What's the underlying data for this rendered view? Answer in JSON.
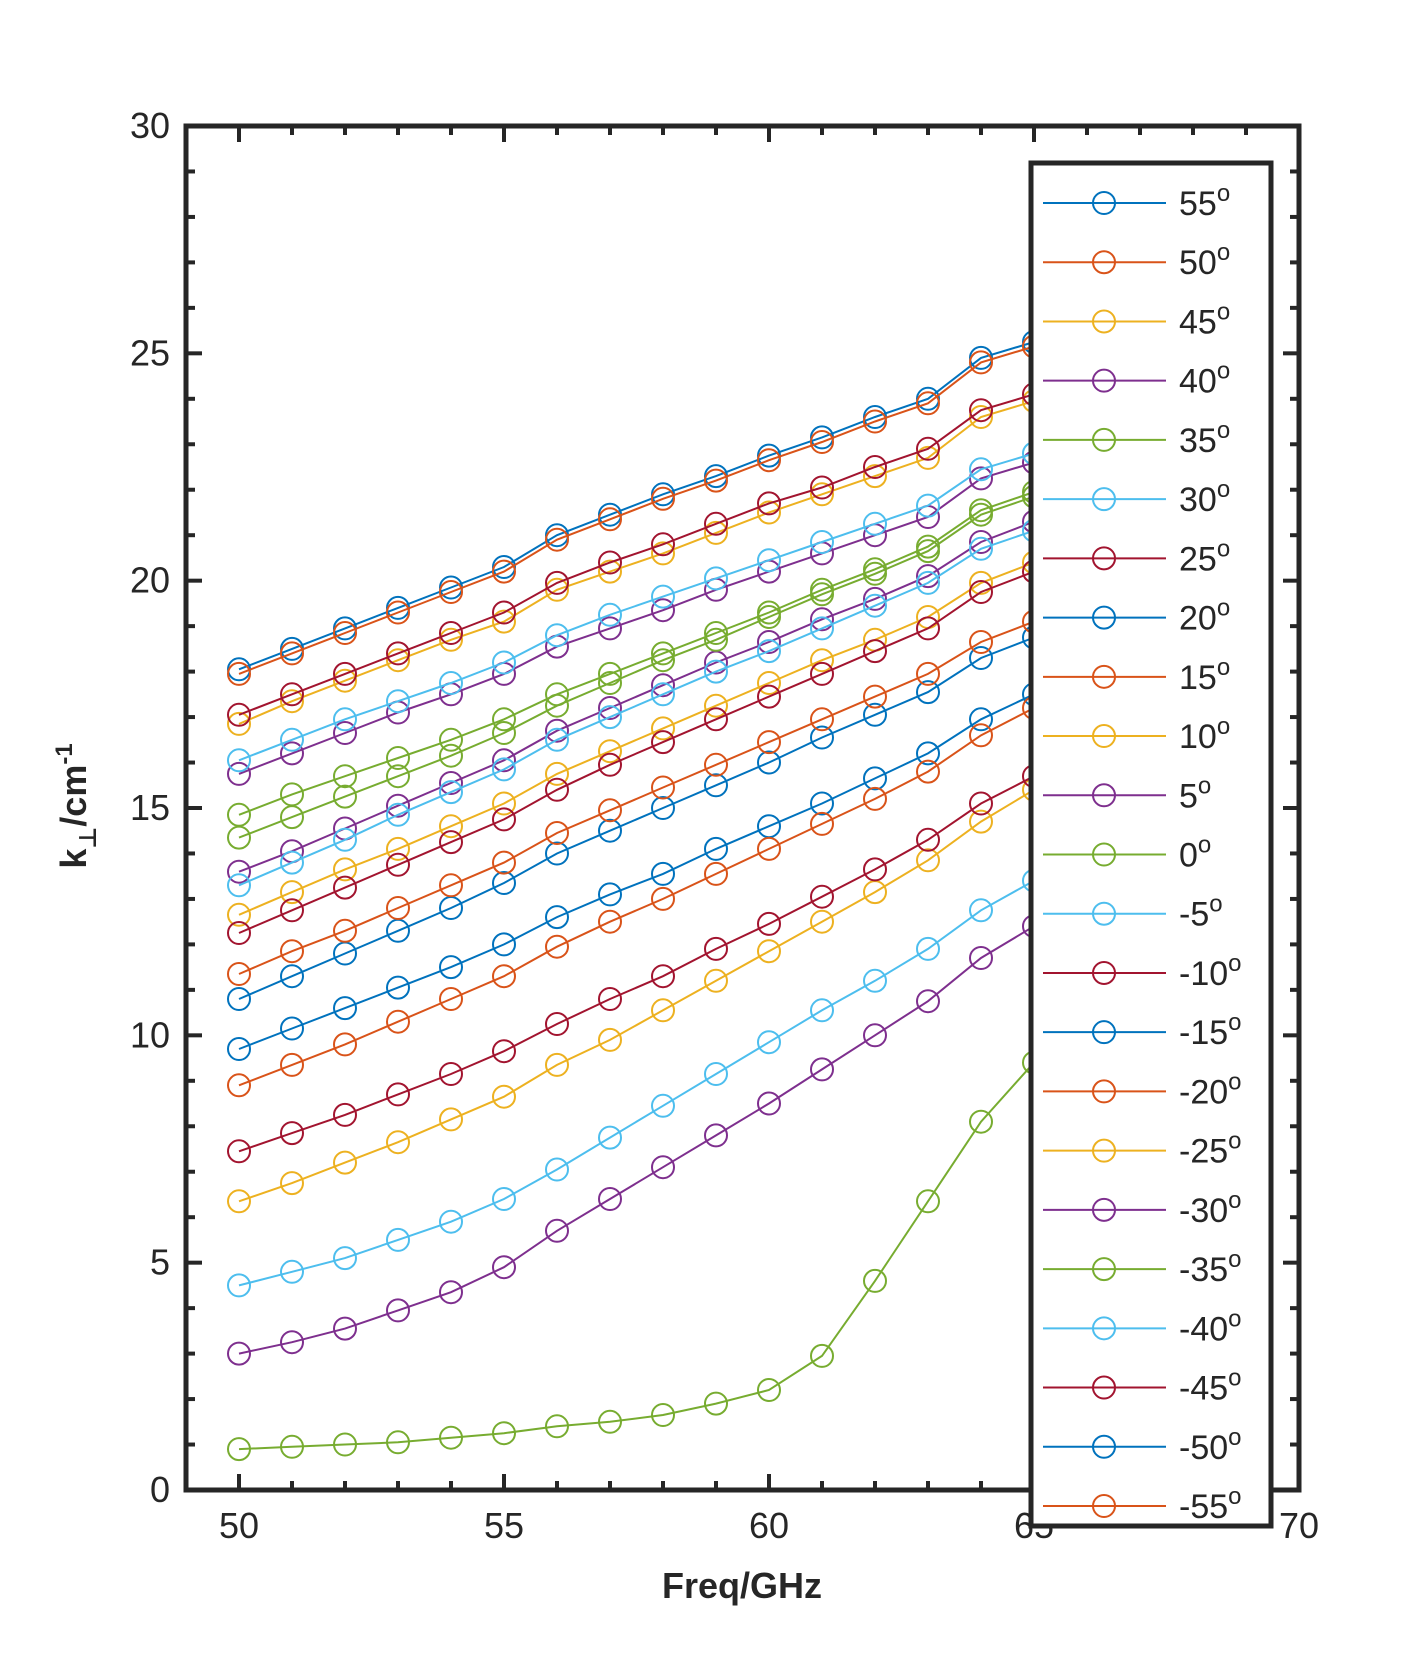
{
  "chart_data": {
    "type": "line",
    "xlabel": "Freq/GHz",
    "ylabel": "k",
    "ylabel_sub": "⊥",
    "ylabel_mid": "/cm",
    "ylabel_sup": "-1",
    "xlim": [
      49,
      70
    ],
    "ylim": [
      0,
      30
    ],
    "xticks": [
      50,
      55,
      60,
      65,
      70
    ],
    "yticks": [
      0,
      5,
      10,
      15,
      20,
      25,
      30
    ],
    "legend_position": "right",
    "legend_unit_sup": "o",
    "x": [
      50,
      51,
      52,
      53,
      54,
      55,
      56,
      57,
      58,
      59,
      60,
      61,
      62,
      63,
      64,
      65
    ],
    "series": [
      {
        "name": "55",
        "color": "#0072BD",
        "values": [
          18.05,
          18.5,
          18.95,
          19.4,
          19.85,
          20.3,
          21.0,
          21.45,
          21.9,
          22.3,
          22.75,
          23.15,
          23.6,
          24.0,
          24.9,
          25.25
        ]
      },
      {
        "name": "50",
        "color": "#D95319",
        "values": [
          17.95,
          18.4,
          18.85,
          19.3,
          19.75,
          20.2,
          20.9,
          21.35,
          21.8,
          22.2,
          22.65,
          23.05,
          23.5,
          23.9,
          24.8,
          25.15
        ]
      },
      {
        "name": "45",
        "color": "#EDB120",
        "values": [
          16.85,
          17.35,
          17.8,
          18.25,
          18.7,
          19.1,
          19.8,
          20.2,
          20.6,
          21.05,
          21.5,
          21.9,
          22.3,
          22.7,
          23.6,
          23.95
        ]
      },
      {
        "name": "40",
        "color": "#7E2F8E",
        "values": [
          15.75,
          16.2,
          16.65,
          17.1,
          17.5,
          17.95,
          18.55,
          18.95,
          19.35,
          19.8,
          20.2,
          20.6,
          21.0,
          21.4,
          22.25,
          22.6
        ]
      },
      {
        "name": "35",
        "color": "#77AC30",
        "values": [
          14.85,
          15.3,
          15.7,
          16.1,
          16.5,
          16.95,
          17.5,
          17.95,
          18.4,
          18.85,
          19.3,
          19.8,
          20.25,
          20.75,
          21.55,
          21.95
        ]
      },
      {
        "name": "30",
        "color": "#4DBEEE",
        "values": [
          16.05,
          16.5,
          16.95,
          17.35,
          17.75,
          18.2,
          18.8,
          19.25,
          19.65,
          20.05,
          20.45,
          20.85,
          21.25,
          21.65,
          22.45,
          22.8
        ]
      },
      {
        "name": "25",
        "color": "#A2142F",
        "values": [
          17.05,
          17.5,
          17.95,
          18.4,
          18.85,
          19.3,
          19.95,
          20.4,
          20.8,
          21.25,
          21.7,
          22.05,
          22.5,
          22.9,
          23.75,
          24.1
        ]
      },
      {
        "name": "20",
        "color": "#0072BD",
        "values": [
          10.8,
          11.3,
          11.8,
          12.3,
          12.8,
          13.35,
          14.0,
          14.5,
          15.0,
          15.5,
          16.0,
          16.55,
          17.05,
          17.55,
          18.3,
          18.75
        ]
      },
      {
        "name": "15",
        "color": "#D95319",
        "values": [
          11.35,
          11.85,
          12.3,
          12.8,
          13.3,
          13.8,
          14.45,
          14.95,
          15.45,
          15.95,
          16.45,
          16.95,
          17.45,
          17.95,
          18.65,
          19.1
        ]
      },
      {
        "name": "10",
        "color": "#EDB120",
        "values": [
          12.65,
          13.15,
          13.65,
          14.1,
          14.6,
          15.1,
          15.75,
          16.25,
          16.75,
          17.25,
          17.75,
          18.25,
          18.7,
          19.2,
          19.95,
          20.4
        ]
      },
      {
        "name": "5",
        "color": "#7E2F8E",
        "values": [
          13.6,
          14.05,
          14.55,
          15.05,
          15.55,
          16.05,
          16.7,
          17.2,
          17.7,
          18.2,
          18.65,
          19.15,
          19.6,
          20.1,
          20.85,
          21.3
        ]
      },
      {
        "name": "0",
        "color": "#77AC30",
        "values": [
          14.35,
          14.8,
          15.25,
          15.7,
          16.15,
          16.65,
          17.25,
          17.75,
          18.25,
          18.7,
          19.2,
          19.7,
          20.15,
          20.65,
          21.45,
          21.85
        ]
      },
      {
        "name": "-5",
        "color": "#4DBEEE",
        "values": [
          13.3,
          13.8,
          14.3,
          14.85,
          15.35,
          15.85,
          16.5,
          17.0,
          17.5,
          18.0,
          18.45,
          18.95,
          19.45,
          19.95,
          20.7,
          21.1
        ]
      },
      {
        "name": "-10",
        "color": "#A2142F",
        "values": [
          12.25,
          12.75,
          13.25,
          13.75,
          14.25,
          14.75,
          15.4,
          15.95,
          16.45,
          16.95,
          17.45,
          17.95,
          18.45,
          18.95,
          19.75,
          20.2
        ]
      },
      {
        "name": "-15",
        "color": "#0072BD",
        "values": [
          9.7,
          10.15,
          10.6,
          11.05,
          11.5,
          12.0,
          12.6,
          13.1,
          13.55,
          14.1,
          14.6,
          15.1,
          15.65,
          16.2,
          16.95,
          17.5
        ]
      },
      {
        "name": "-20",
        "color": "#D95319",
        "values": [
          8.9,
          9.35,
          9.8,
          10.3,
          10.8,
          11.3,
          11.95,
          12.5,
          13.0,
          13.55,
          14.1,
          14.65,
          15.2,
          15.8,
          16.6,
          17.2
        ]
      },
      {
        "name": "-25",
        "color": "#EDB120",
        "values": [
          6.35,
          6.75,
          7.2,
          7.65,
          8.15,
          8.65,
          9.35,
          9.9,
          10.55,
          11.2,
          11.85,
          12.5,
          13.15,
          13.85,
          14.7,
          15.4
        ]
      },
      {
        "name": "-30",
        "color": "#7E2F8E",
        "values": [
          3.0,
          3.25,
          3.55,
          3.95,
          4.35,
          4.9,
          5.7,
          6.4,
          7.1,
          7.8,
          8.5,
          9.25,
          10.0,
          10.75,
          11.7,
          12.4
        ]
      },
      {
        "name": "-35",
        "color": "#77AC30",
        "values": [
          0.9,
          0.95,
          1.0,
          1.05,
          1.15,
          1.25,
          1.4,
          1.5,
          1.65,
          1.9,
          2.2,
          2.95,
          4.6,
          6.35,
          8.1,
          9.4
        ]
      },
      {
        "name": "-40",
        "color": "#4DBEEE",
        "values": [
          4.5,
          4.8,
          5.1,
          5.5,
          5.9,
          6.4,
          7.05,
          7.75,
          8.45,
          9.15,
          9.85,
          10.55,
          11.2,
          11.9,
          12.75,
          13.4
        ]
      },
      {
        "name": "-45",
        "color": "#A2142F",
        "values": [
          7.45,
          7.85,
          8.25,
          8.7,
          9.15,
          9.65,
          10.25,
          10.8,
          11.3,
          11.9,
          12.45,
          13.05,
          13.65,
          14.3,
          15.1,
          15.7
        ]
      },
      {
        "name": "-50",
        "color": "#0072BD",
        "values": [
          null,
          null,
          null,
          null,
          null,
          null,
          null,
          null,
          null,
          null,
          null,
          null,
          null,
          null,
          null,
          null
        ]
      },
      {
        "name": "-55",
        "color": "#D95319",
        "values": [
          null,
          null,
          null,
          null,
          null,
          null,
          null,
          null,
          null,
          null,
          null,
          null,
          null,
          null,
          null,
          null
        ]
      }
    ]
  }
}
